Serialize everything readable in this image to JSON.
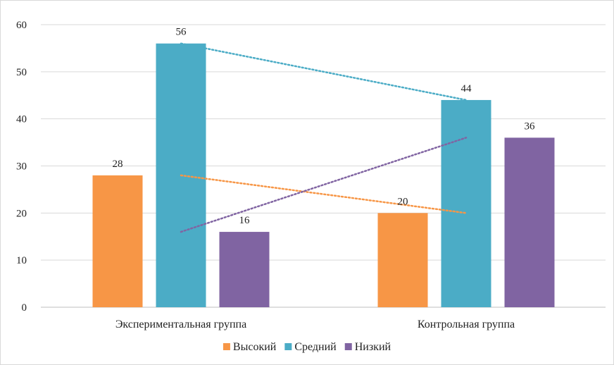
{
  "chart_data": {
    "type": "bar",
    "categories": [
      "Экспериментальная группа",
      "Контрольная группа"
    ],
    "series": [
      {
        "name": "Высокий",
        "values": [
          28,
          20
        ],
        "color": "#F79646"
      },
      {
        "name": "Средний",
        "values": [
          56,
          44
        ],
        "color": "#4BACC6"
      },
      {
        "name": "Низкий",
        "values": [
          16,
          36
        ],
        "color": "#8064A2"
      }
    ],
    "ylim": [
      0,
      60
    ],
    "yticks": [
      0,
      10,
      20,
      30,
      40,
      50,
      60
    ],
    "grid": true,
    "legend": "bottom",
    "data_labels": true,
    "trendlines": "dotted linear per series",
    "title": "",
    "xlabel": "",
    "ylabel": ""
  }
}
